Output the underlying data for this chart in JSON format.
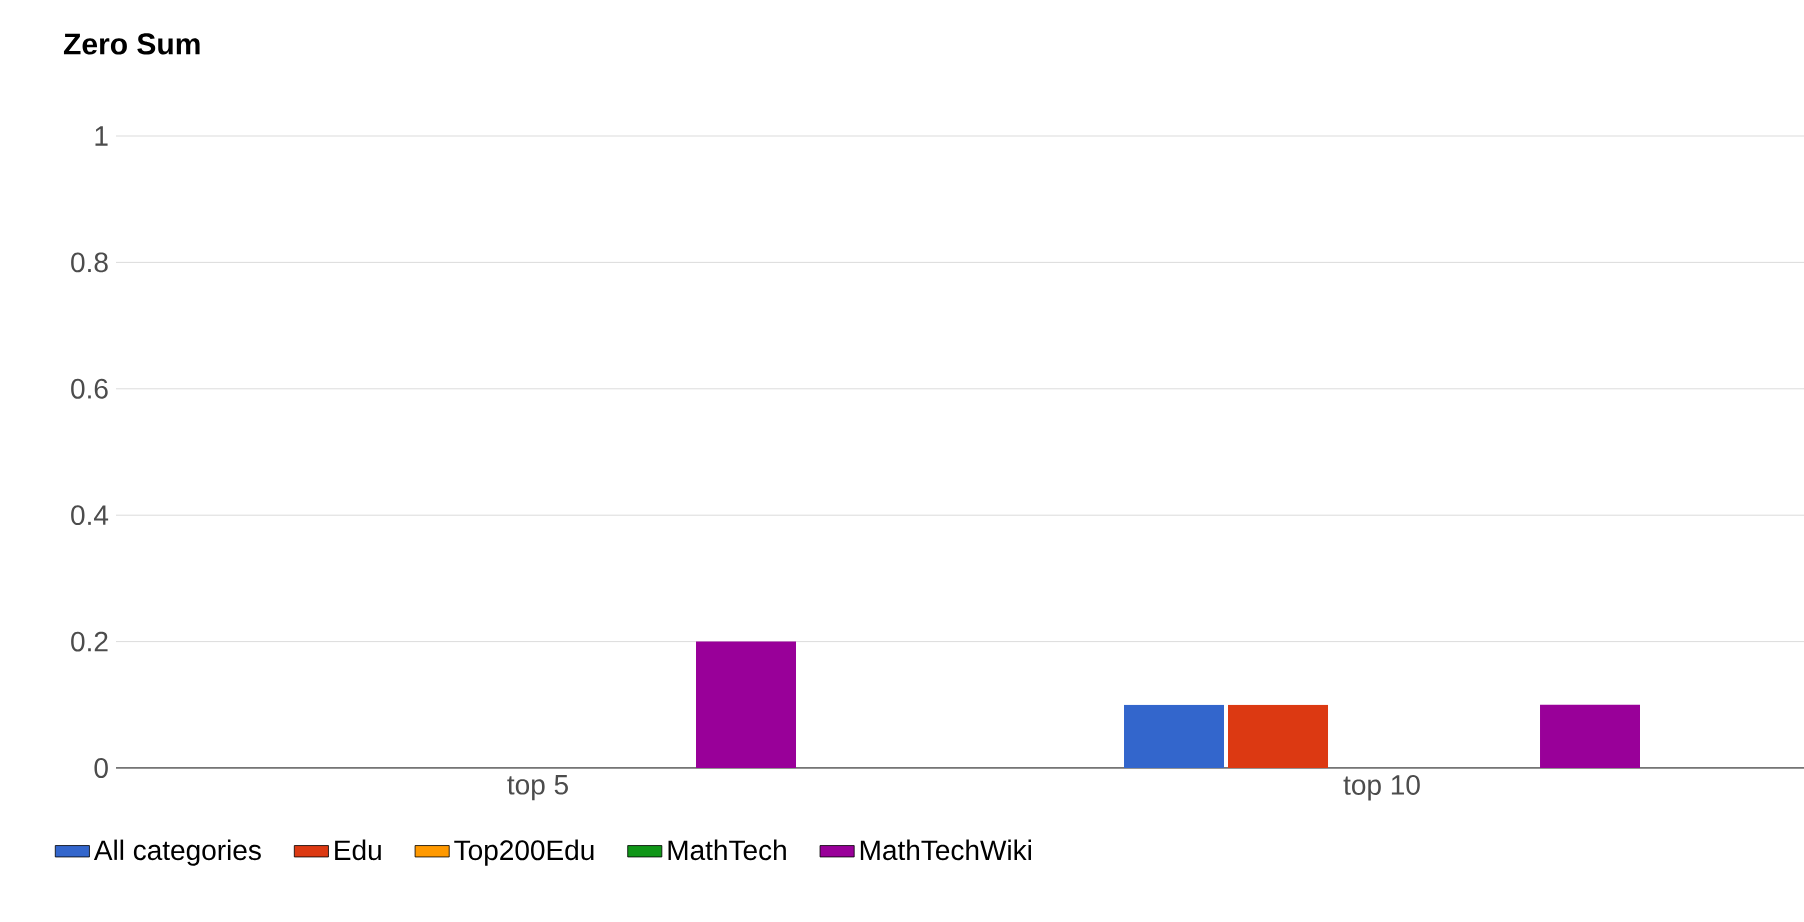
{
  "chart_data": {
    "type": "bar",
    "title": "Zero Sum",
    "categories": [
      "top 5",
      "top 10"
    ],
    "series": [
      {
        "name": "All categories",
        "color": "#3366cc",
        "values": [
          0,
          0.1
        ]
      },
      {
        "name": "Edu",
        "color": "#dc3912",
        "values": [
          0,
          0.1
        ]
      },
      {
        "name": "Top200Edu",
        "color": "#ff9900",
        "values": [
          0,
          0
        ]
      },
      {
        "name": "MathTech",
        "color": "#109618",
        "values": [
          0,
          0
        ]
      },
      {
        "name": "MathTechWiki",
        "color": "#990099",
        "values": [
          0.2,
          0.1
        ]
      }
    ],
    "ylim": [
      0,
      1
    ],
    "yticks": [
      0,
      0.2,
      0.4,
      0.6,
      0.8,
      1
    ],
    "grid": "y",
    "legend": "bottom"
  }
}
